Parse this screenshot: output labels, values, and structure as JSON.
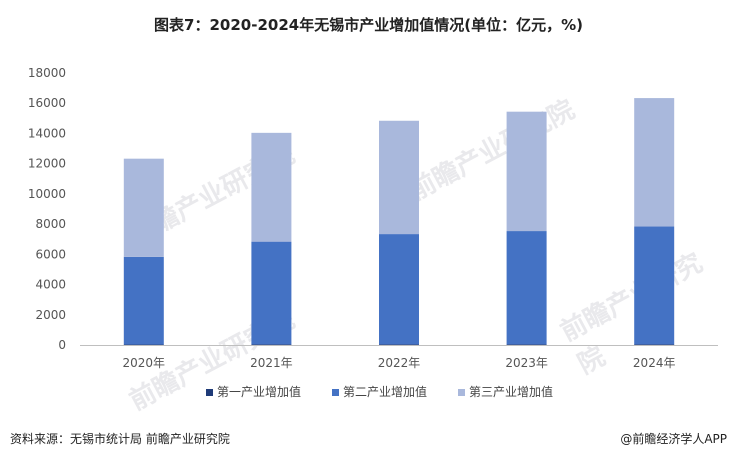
{
  "title": "图表7：2020-2024年无锡市产业增加值情况(单位：亿元，%)",
  "watermark_text": "前瞻产业研究院",
  "source": "资料来源：无锡市统计局 前瞻产业研究院",
  "brand": "@前瞻经济学人APP",
  "chart_data": {
    "type": "bar",
    "stacked": true,
    "categories": [
      "2020年",
      "2021年",
      "2022年",
      "2023年",
      "2024年"
    ],
    "series": [
      {
        "name": "第一产业增加值",
        "values": [
          30,
          40,
          40,
          40,
          40
        ],
        "color": "#1f3b78"
      },
      {
        "name": "第二产业增加值",
        "values": [
          5800,
          6800,
          7300,
          7500,
          7800
        ],
        "color": "#4472c4"
      },
      {
        "name": "第三产业增加值",
        "values": [
          6500,
          7200,
          7500,
          7900,
          8500
        ],
        "color": "#a9b8dc"
      }
    ],
    "ylim": [
      0,
      18000
    ],
    "yticks": [
      0,
      2000,
      4000,
      6000,
      8000,
      10000,
      12000,
      14000,
      16000,
      18000
    ],
    "grid": false,
    "legend_position": "bottom"
  }
}
